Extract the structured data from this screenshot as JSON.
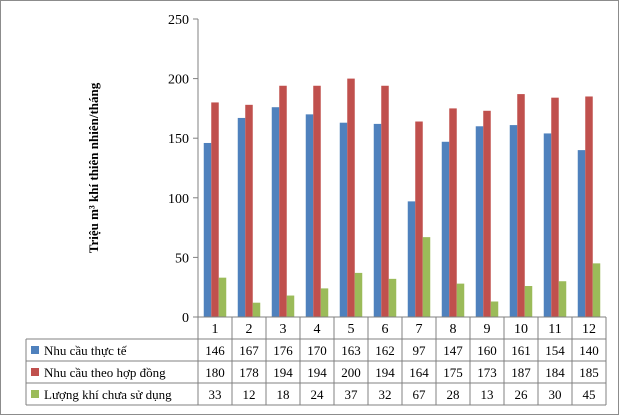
{
  "chart_data": {
    "type": "bar",
    "ylabel": "Triệu m³ khí thiên nhiên/tháng",
    "ylim": [
      0,
      250
    ],
    "yticks": [
      0,
      50,
      100,
      150,
      200,
      250
    ],
    "grid": false,
    "legend": "table-left",
    "categories": [
      "1",
      "2",
      "3",
      "4",
      "5",
      "6",
      "7",
      "8",
      "9",
      "10",
      "11",
      "12"
    ],
    "series": [
      {
        "name": "Nhu cầu thực tế",
        "color": "#4f81bd",
        "values": [
          146,
          167,
          176,
          170,
          163,
          162,
          97,
          147,
          160,
          161,
          154,
          140
        ]
      },
      {
        "name": "Nhu cầu theo hợp đồng",
        "color": "#c0504d",
        "values": [
          180,
          178,
          194,
          194,
          200,
          194,
          164,
          175,
          173,
          187,
          184,
          185
        ]
      },
      {
        "name": "Lượng khí chưa sử dụng",
        "color": "#9bbb59",
        "values": [
          33,
          12,
          18,
          24,
          37,
          32,
          67,
          28,
          13,
          26,
          30,
          45
        ]
      }
    ]
  }
}
